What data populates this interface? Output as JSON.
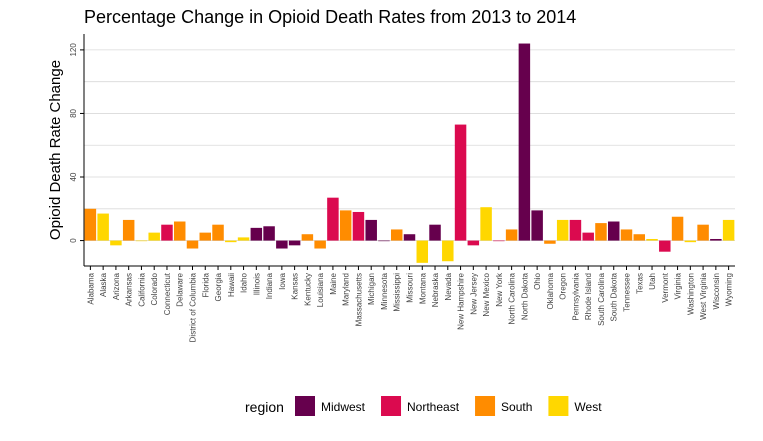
{
  "chart_data": {
    "type": "bar",
    "title": "Percentage Change in Opioid Death Rates from 2013 to 2014",
    "xlabel": "",
    "ylabel": "Opioid Death Rate Change",
    "ylim": [
      -16,
      130
    ],
    "yticks": [
      0,
      40,
      80,
      120
    ],
    "grid": true,
    "legend_position": "bottom",
    "legend_title": "region",
    "categories": [
      "Alabama",
      "Alaska",
      "Arizona",
      "Arkansas",
      "California",
      "Colorado",
      "Connecticut",
      "Delaware",
      "District of Columbia",
      "Florida",
      "Georgia",
      "Hawaii",
      "Idaho",
      "Illinois",
      "Indiana",
      "Iowa",
      "Kansas",
      "Kentucky",
      "Louisiana",
      "Maine",
      "Maryland",
      "Massachusetts",
      "Michigan",
      "Minnesota",
      "Mississippi",
      "Missouri",
      "Montana",
      "Nebraska",
      "Nevada",
      "New Hampshire",
      "New Jersey",
      "New Mexico",
      "New York",
      "North Carolina",
      "North Dakota",
      "Ohio",
      "Oklahoma",
      "Oregon",
      "Pennsylvania",
      "Rhode Island",
      "South Carolina",
      "South Dakota",
      "Tennessee",
      "Texas",
      "Utah",
      "Vermont",
      "Virginia",
      "Washington",
      "West Virginia",
      "Wisconsin",
      "Wyoming"
    ],
    "values": [
      20,
      17,
      -3,
      13,
      0,
      5,
      10,
      12,
      -5,
      5,
      10,
      -1,
      2,
      8,
      9,
      -5,
      -3,
      4,
      -5,
      27,
      19,
      18,
      13,
      0,
      7,
      4,
      -14,
      10,
      -13,
      73,
      -3,
      21,
      0,
      7,
      124,
      19,
      -2,
      13,
      13,
      5,
      11,
      12,
      7,
      4,
      1,
      -7,
      15,
      -1,
      10,
      1,
      13
    ],
    "regions": [
      "South",
      "West",
      "West",
      "South",
      "West",
      "West",
      "Northeast",
      "South",
      "South",
      "South",
      "South",
      "West",
      "West",
      "Midwest",
      "Midwest",
      "Midwest",
      "Midwest",
      "South",
      "South",
      "Northeast",
      "South",
      "Northeast",
      "Midwest",
      "Midwest",
      "South",
      "Midwest",
      "West",
      "Midwest",
      "West",
      "Northeast",
      "Northeast",
      "West",
      "Northeast",
      "South",
      "Midwest",
      "Midwest",
      "South",
      "West",
      "Northeast",
      "Northeast",
      "South",
      "Midwest",
      "South",
      "South",
      "West",
      "Northeast",
      "South",
      "West",
      "South",
      "Midwest",
      "West"
    ],
    "legend": [
      {
        "name": "Midwest",
        "color": "#66004D"
      },
      {
        "name": "Northeast",
        "color": "#DB0A4F"
      },
      {
        "name": "South",
        "color": "#FF8C00"
      },
      {
        "name": "West",
        "color": "#FFD700"
      }
    ]
  }
}
